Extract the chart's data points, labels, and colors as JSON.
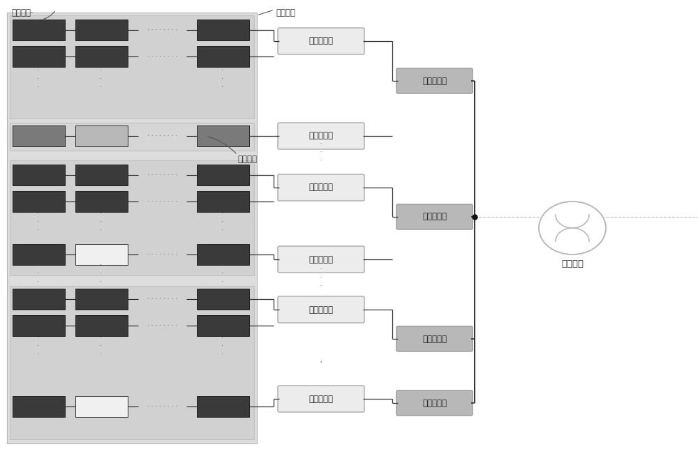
{
  "bg_white": "#ffffff",
  "main_bg": "#d8d8d8",
  "grp_bg": "#cccccc",
  "grp_bg2": "#e0e0e0",
  "highlighted_row_bg": "#d0d0d0",
  "panel_dark": "#3a3a3a",
  "panel_mid": "#7a7a7a",
  "panel_light": "#b8b8b8",
  "panel_white": "#f0f0f0",
  "inv_fill": "#ececec",
  "inv_edge": "#aaaaaa",
  "dist_fill": "#b8b8b8",
  "dist_edge": "#999999",
  "line_col": "#333333",
  "bus_col": "#222222",
  "grid_col": "#bbbbbb",
  "dot_col": "#111111",
  "text_col": "#222222",
  "label_guangfu_zujian": "光伏组件·",
  "label_guangfu_zhenlie": "光伏阵列",
  "label_guangfu_zucuan": "光伏组串",
  "label_inv": "光伏逆变器",
  "label_dist": "交流配电柜",
  "label_grid": "交流电网"
}
